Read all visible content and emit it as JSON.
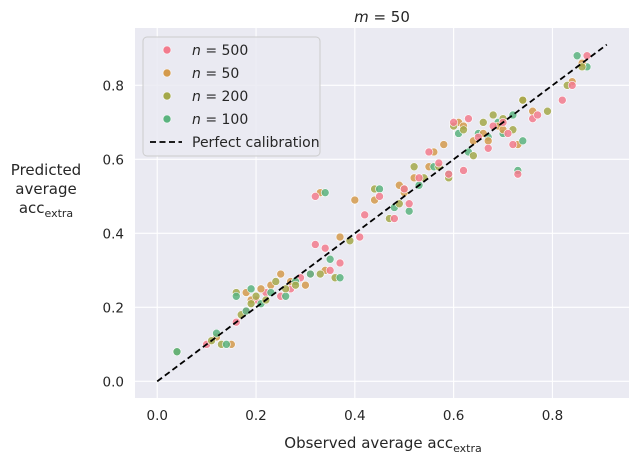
{
  "chart_data": {
    "type": "scatter",
    "title": {
      "var": "m",
      "rest": " = 50"
    },
    "xlabel": {
      "text": "Observed average acc",
      "sub": "extra"
    },
    "ylabel": {
      "line1": "Predicted",
      "line2": "average",
      "line3": "acc",
      "sub": "extra"
    },
    "xlim": [
      -0.045,
      0.955
    ],
    "ylim": [
      -0.045,
      0.955
    ],
    "xticks": [
      0.0,
      0.2,
      0.4,
      0.6,
      0.8
    ],
    "yticks": [
      0.0,
      0.2,
      0.4,
      0.6,
      0.8
    ],
    "xtick_labels": [
      "0.0",
      "0.2",
      "0.4",
      "0.6",
      "0.8"
    ],
    "ytick_labels": [
      "0.0",
      "0.2",
      "0.4",
      "0.6",
      "0.8"
    ],
    "grid": true,
    "legend_location": "top-left",
    "reference_line": {
      "label": "Perfect calibration",
      "x": [
        0.0,
        0.91
      ],
      "y": [
        0.0,
        0.91
      ],
      "color": "#000000",
      "style": "dashed"
    },
    "series": [
      {
        "name": "n = 500",
        "n_var": "n",
        "n_value": " = 500",
        "color": "#f27b8d",
        "points": [
          [
            0.04,
            0.08
          ],
          [
            0.1,
            0.1
          ],
          [
            0.16,
            0.16
          ],
          [
            0.18,
            0.19
          ],
          [
            0.2,
            0.22
          ],
          [
            0.22,
            0.24
          ],
          [
            0.25,
            0.23
          ],
          [
            0.27,
            0.25
          ],
          [
            0.29,
            0.28
          ],
          [
            0.31,
            0.29
          ],
          [
            0.32,
            0.37
          ],
          [
            0.32,
            0.5
          ],
          [
            0.34,
            0.36
          ],
          [
            0.35,
            0.3
          ],
          [
            0.37,
            0.32
          ],
          [
            0.41,
            0.39
          ],
          [
            0.42,
            0.45
          ],
          [
            0.45,
            0.5
          ],
          [
            0.48,
            0.44
          ],
          [
            0.5,
            0.52
          ],
          [
            0.51,
            0.48
          ],
          [
            0.53,
            0.55
          ],
          [
            0.55,
            0.62
          ],
          [
            0.57,
            0.59
          ],
          [
            0.59,
            0.56
          ],
          [
            0.6,
            0.7
          ],
          [
            0.62,
            0.57
          ],
          [
            0.63,
            0.71
          ],
          [
            0.65,
            0.66
          ],
          [
            0.67,
            0.63
          ],
          [
            0.68,
            0.69
          ],
          [
            0.7,
            0.7
          ],
          [
            0.71,
            0.67
          ],
          [
            0.72,
            0.64
          ],
          [
            0.73,
            0.56
          ],
          [
            0.76,
            0.71
          ],
          [
            0.77,
            0.72
          ],
          [
            0.82,
            0.76
          ],
          [
            0.84,
            0.8
          ],
          [
            0.87,
            0.88
          ]
        ]
      },
      {
        "name": "n = 50",
        "n_var": "n",
        "n_value": " = 50",
        "color": "#d49a4c",
        "points": [
          [
            0.04,
            0.08
          ],
          [
            0.12,
            0.12
          ],
          [
            0.15,
            0.1
          ],
          [
            0.18,
            0.24
          ],
          [
            0.19,
            0.22
          ],
          [
            0.21,
            0.25
          ],
          [
            0.23,
            0.26
          ],
          [
            0.25,
            0.29
          ],
          [
            0.27,
            0.27
          ],
          [
            0.3,
            0.26
          ],
          [
            0.33,
            0.51
          ],
          [
            0.34,
            0.3
          ],
          [
            0.37,
            0.39
          ],
          [
            0.4,
            0.49
          ],
          [
            0.44,
            0.49
          ],
          [
            0.49,
            0.53
          ],
          [
            0.5,
            0.51
          ],
          [
            0.52,
            0.55
          ],
          [
            0.55,
            0.58
          ],
          [
            0.56,
            0.62
          ],
          [
            0.58,
            0.64
          ],
          [
            0.61,
            0.7
          ],
          [
            0.62,
            0.69
          ],
          [
            0.64,
            0.65
          ],
          [
            0.66,
            0.67
          ],
          [
            0.67,
            0.65
          ],
          [
            0.69,
            0.69
          ],
          [
            0.7,
            0.68
          ],
          [
            0.73,
            0.64
          ],
          [
            0.74,
            0.76
          ],
          [
            0.76,
            0.73
          ],
          [
            0.84,
            0.81
          ],
          [
            0.86,
            0.86
          ]
        ]
      },
      {
        "name": "n = 200",
        "n_var": "n",
        "n_value": " = 200",
        "color": "#a3a84a",
        "points": [
          [
            0.04,
            0.08
          ],
          [
            0.11,
            0.11
          ],
          [
            0.13,
            0.1
          ],
          [
            0.16,
            0.24
          ],
          [
            0.17,
            0.18
          ],
          [
            0.19,
            0.21
          ],
          [
            0.2,
            0.23
          ],
          [
            0.22,
            0.22
          ],
          [
            0.24,
            0.27
          ],
          [
            0.26,
            0.25
          ],
          [
            0.28,
            0.26
          ],
          [
            0.33,
            0.29
          ],
          [
            0.36,
            0.28
          ],
          [
            0.39,
            0.38
          ],
          [
            0.44,
            0.52
          ],
          [
            0.47,
            0.44
          ],
          [
            0.49,
            0.48
          ],
          [
            0.5,
            0.52
          ],
          [
            0.52,
            0.58
          ],
          [
            0.54,
            0.55
          ],
          [
            0.57,
            0.58
          ],
          [
            0.59,
            0.55
          ],
          [
            0.6,
            0.69
          ],
          [
            0.62,
            0.68
          ],
          [
            0.64,
            0.61
          ],
          [
            0.66,
            0.7
          ],
          [
            0.68,
            0.72
          ],
          [
            0.7,
            0.71
          ],
          [
            0.72,
            0.68
          ],
          [
            0.74,
            0.76
          ],
          [
            0.79,
            0.73
          ],
          [
            0.83,
            0.8
          ],
          [
            0.86,
            0.85
          ]
        ]
      },
      {
        "name": "n = 100",
        "n_var": "n",
        "n_value": " = 100",
        "color": "#5bb37f",
        "points": [
          [
            0.04,
            0.08
          ],
          [
            0.12,
            0.13
          ],
          [
            0.14,
            0.1
          ],
          [
            0.16,
            0.23
          ],
          [
            0.18,
            0.19
          ],
          [
            0.19,
            0.25
          ],
          [
            0.21,
            0.21
          ],
          [
            0.23,
            0.24
          ],
          [
            0.26,
            0.23
          ],
          [
            0.28,
            0.27
          ],
          [
            0.31,
            0.29
          ],
          [
            0.34,
            0.51
          ],
          [
            0.35,
            0.33
          ],
          [
            0.37,
            0.28
          ],
          [
            0.45,
            0.52
          ],
          [
            0.48,
            0.47
          ],
          [
            0.51,
            0.46
          ],
          [
            0.53,
            0.53
          ],
          [
            0.56,
            0.58
          ],
          [
            0.59,
            0.56
          ],
          [
            0.61,
            0.67
          ],
          [
            0.63,
            0.62
          ],
          [
            0.65,
            0.67
          ],
          [
            0.67,
            0.66
          ],
          [
            0.69,
            0.7
          ],
          [
            0.7,
            0.67
          ],
          [
            0.72,
            0.72
          ],
          [
            0.73,
            0.57
          ],
          [
            0.74,
            0.65
          ],
          [
            0.85,
            0.88
          ],
          [
            0.87,
            0.85
          ]
        ]
      }
    ]
  }
}
